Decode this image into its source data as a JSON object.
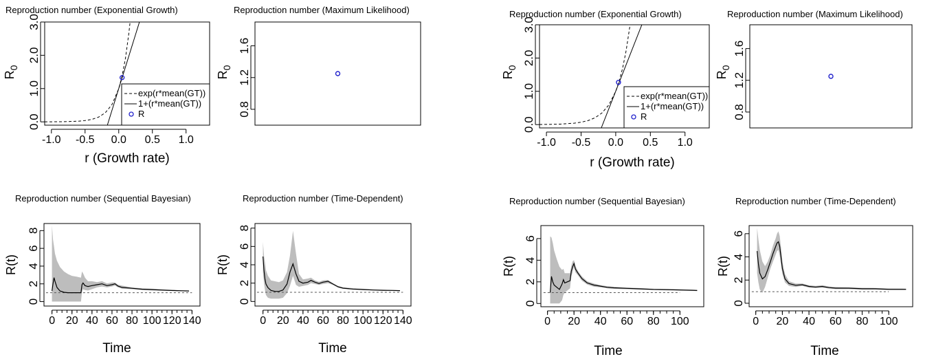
{
  "chart_data": [
    {
      "id": "eg1",
      "type": "line",
      "title": "Reproduction number (Exponential Growth)",
      "xlabel": "r (Growth rate)",
      "ylabel": "R0",
      "xlim": [
        -1.1,
        1.35
      ],
      "ylim": [
        -0.1,
        3.0
      ],
      "xticks": [
        -1.0,
        -0.5,
        0.0,
        0.5,
        1.0
      ],
      "xtick_labels": [
        "-1.0",
        "-0.5",
        "0.0",
        "0.5",
        "1.0"
      ],
      "yticks": [
        0.0,
        1.0,
        2.0,
        3.0
      ],
      "ytick_labels": [
        "0.0",
        "1.0",
        "2.0",
        "3.0"
      ],
      "mean_gt": 6.5,
      "series": [
        {
          "name": "exp(r*mean(GT))",
          "style": "dashed",
          "x": [
            -1.1,
            -1.0,
            -0.8,
            -0.6,
            -0.5,
            -0.4,
            -0.3,
            -0.2,
            -0.1,
            0.0,
            0.05,
            0.1,
            0.15,
            0.169
          ],
          "y": [
            0.001,
            0.002,
            0.006,
            0.02,
            0.039,
            0.074,
            0.142,
            0.273,
            0.522,
            1.0,
            1.384,
            1.916,
            2.651,
            3.0
          ]
        },
        {
          "name": "1+(r*mean(GT))",
          "style": "solid",
          "x": [
            -0.169,
            0.308
          ],
          "y": [
            -0.1,
            3.0
          ]
        },
        {
          "name": "R",
          "style": "point",
          "x": [
            0.05
          ],
          "y": [
            1.33
          ]
        }
      ],
      "legend": "bottom-right"
    },
    {
      "id": "ml1",
      "type": "scatter",
      "title": "Reproduction number (Maximum Likelihood)",
      "ylabel": "R0",
      "xlim": [
        0,
        1
      ],
      "ylim": [
        0.6,
        1.9
      ],
      "yticks": [
        0.8,
        1.2,
        1.6
      ],
      "ytick_labels": [
        "0.8",
        "1.2",
        "1.6"
      ],
      "points": [
        {
          "x": 0.5,
          "y": 1.25
        }
      ]
    },
    {
      "id": "sb1",
      "type": "area",
      "title": "Reproduction number (Sequential Bayesian)",
      "xlabel": "Time",
      "ylabel": "R(t)",
      "xlim": [
        -8,
        148
      ],
      "ylim": [
        -0.5,
        8.8
      ],
      "xticks": [
        0,
        20,
        40,
        60,
        80,
        100,
        120,
        140
      ],
      "xtick_labels": [
        "0",
        "20",
        "40",
        "60",
        "80",
        "100",
        "120",
        "140"
      ],
      "yticks": [
        0,
        2,
        4,
        6,
        8
      ],
      "ytick_labels": [
        "0",
        "2",
        "4",
        "6",
        "8"
      ],
      "reference_line": 1,
      "estimate": {
        "x": [
          0,
          1,
          2,
          3,
          5,
          8,
          12,
          16,
          20,
          25,
          29,
          30,
          31,
          33,
          36,
          40,
          45,
          50,
          55,
          60,
          63,
          66,
          70,
          80,
          90,
          100,
          110,
          120,
          130,
          137
        ],
        "y": [
          1.2,
          2.0,
          2.7,
          2.3,
          1.6,
          1.2,
          1.05,
          1.0,
          1.0,
          1.0,
          1.0,
          1.9,
          2.1,
          1.8,
          1.7,
          1.8,
          1.9,
          2.0,
          1.8,
          1.9,
          2.0,
          1.75,
          1.6,
          1.5,
          1.4,
          1.35,
          1.3,
          1.25,
          1.22,
          1.2
        ]
      },
      "ci_upper": {
        "x": [
          0,
          1,
          2,
          3,
          5,
          8,
          12,
          16,
          20,
          25,
          29,
          30,
          31,
          33,
          36,
          40,
          45,
          50,
          55,
          60,
          63,
          66,
          70,
          80,
          90,
          100,
          110,
          120,
          130,
          137
        ],
        "y": [
          8.6,
          7.0,
          6.2,
          5.4,
          4.6,
          3.9,
          3.4,
          3.1,
          2.9,
          2.8,
          2.7,
          3.4,
          3.2,
          2.7,
          2.3,
          2.3,
          2.2,
          2.3,
          2.05,
          2.15,
          2.15,
          1.9,
          1.8,
          1.6,
          1.5,
          1.45,
          1.4,
          1.32,
          1.28,
          1.25
        ]
      },
      "ci_lower": {
        "x": [
          0,
          1,
          2,
          3,
          5,
          8,
          12,
          16,
          20,
          25,
          29,
          30,
          31,
          33,
          36,
          40,
          45,
          50,
          55,
          60,
          63,
          66,
          70,
          80,
          90,
          100,
          110,
          120,
          130,
          137
        ],
        "y": [
          0.0,
          0.0,
          0.0,
          0.0,
          0.0,
          0.0,
          0.0,
          0.0,
          0.0,
          0.0,
          0.0,
          1.1,
          1.4,
          1.3,
          1.25,
          1.4,
          1.6,
          1.7,
          1.6,
          1.7,
          1.8,
          1.6,
          1.45,
          1.4,
          1.3,
          1.27,
          1.22,
          1.2,
          1.17,
          1.15
        ]
      }
    },
    {
      "id": "td1",
      "type": "area",
      "title": "Reproduction number (Time-Dependent)",
      "xlabel": "Time",
      "ylabel": "R(t)",
      "xlim": [
        -8,
        148
      ],
      "ylim": [
        -0.5,
        8.5
      ],
      "xticks": [
        0,
        20,
        40,
        60,
        80,
        100,
        120,
        140
      ],
      "xtick_labels": [
        "0",
        "20",
        "40",
        "60",
        "80",
        "100",
        "120",
        "140"
      ],
      "yticks": [
        0,
        2,
        4,
        6,
        8
      ],
      "ytick_labels": [
        "0",
        "2",
        "4",
        "6",
        "8"
      ],
      "reference_line": 1,
      "estimate": {
        "x": [
          0,
          1,
          2,
          3,
          5,
          8,
          12,
          16,
          20,
          24,
          27,
          30,
          33,
          36,
          40,
          45,
          48,
          52,
          56,
          60,
          65,
          70,
          75,
          80,
          90,
          100,
          110,
          120,
          130,
          137
        ],
        "y": [
          4.9,
          3.4,
          2.4,
          1.9,
          1.5,
          1.2,
          1.1,
          1.1,
          1.25,
          1.9,
          3.2,
          4.1,
          3.0,
          2.2,
          2.0,
          2.1,
          2.3,
          2.1,
          1.95,
          2.1,
          2.2,
          1.9,
          1.6,
          1.45,
          1.35,
          1.3,
          1.25,
          1.22,
          1.2,
          1.18
        ]
      },
      "ci_upper": {
        "x": [
          0,
          1,
          2,
          3,
          5,
          8,
          12,
          16,
          20,
          24,
          27,
          30,
          33,
          36,
          40,
          45,
          48,
          52,
          56,
          60,
          65,
          70,
          75,
          80,
          90,
          100,
          110,
          120,
          130,
          137
        ],
        "y": [
          6.5,
          5.0,
          4.2,
          3.4,
          2.8,
          2.3,
          2.2,
          2.1,
          2.3,
          3.2,
          5.0,
          7.7,
          5.2,
          3.0,
          2.4,
          2.5,
          2.6,
          2.3,
          2.15,
          2.3,
          2.35,
          2.0,
          1.7,
          1.55,
          1.45,
          1.38,
          1.32,
          1.28,
          1.25,
          1.22
        ]
      },
      "ci_lower": {
        "x": [
          0,
          1,
          2,
          3,
          5,
          8,
          12,
          16,
          20,
          24,
          27,
          30,
          33,
          36,
          40,
          45,
          48,
          52,
          56,
          60,
          65,
          70,
          75,
          80,
          90,
          100,
          110,
          120,
          130,
          137
        ],
        "y": [
          3.2,
          2.0,
          1.2,
          0.7,
          0.4,
          0.3,
          0.3,
          0.3,
          0.4,
          0.9,
          1.7,
          2.8,
          1.8,
          1.6,
          1.7,
          1.8,
          2.0,
          1.9,
          1.8,
          1.9,
          2.0,
          1.8,
          1.5,
          1.38,
          1.28,
          1.24,
          1.2,
          1.17,
          1.15,
          1.13
        ]
      }
    },
    {
      "id": "eg2",
      "type": "line",
      "title": "Reproduction number (Exponential Growth)",
      "xlabel": "r (Growth rate)",
      "ylabel": "R0",
      "xlim": [
        -1.1,
        1.35
      ],
      "ylim": [
        -0.1,
        3.0
      ],
      "xticks": [
        -1.0,
        -0.5,
        0.0,
        0.5,
        1.0
      ],
      "xtick_labels": [
        "-1.0",
        "-0.5",
        "0.0",
        "0.5",
        "1.0"
      ],
      "yticks": [
        0.0,
        1.0,
        2.0,
        3.0
      ],
      "ytick_labels": [
        "0.0",
        "1.0",
        "2.0",
        "3.0"
      ],
      "mean_gt": 5.3,
      "series": [
        {
          "name": "exp(r*mean(GT))",
          "style": "dashed",
          "x": [
            -1.1,
            -1.0,
            -0.8,
            -0.6,
            -0.5,
            -0.4,
            -0.3,
            -0.2,
            -0.1,
            0.0,
            0.05,
            0.1,
            0.15,
            0.207
          ],
          "y": [
            0.003,
            0.005,
            0.014,
            0.042,
            0.071,
            0.12,
            0.204,
            0.346,
            0.589,
            1.0,
            1.304,
            1.7,
            2.216,
            3.0
          ]
        },
        {
          "name": "1+(r*mean(GT))",
          "style": "solid",
          "x": [
            -0.208,
            0.377
          ],
          "y": [
            -0.1,
            3.0
          ]
        },
        {
          "name": "R",
          "style": "point",
          "x": [
            0.04
          ],
          "y": [
            1.27
          ]
        }
      ],
      "legend": "bottom-right"
    },
    {
      "id": "ml2",
      "type": "scatter",
      "title": "Reproduction number (Maximum Likelihood)",
      "ylabel": "R0",
      "xlim": [
        0,
        1
      ],
      "ylim": [
        0.6,
        1.9
      ],
      "yticks": [
        0.8,
        1.2,
        1.6
      ],
      "ytick_labels": [
        "0.8",
        "1.2",
        "1.6"
      ],
      "points": [
        {
          "x": 0.5,
          "y": 1.25
        }
      ]
    },
    {
      "id": "sb2",
      "type": "area",
      "title": "Reproduction number (Sequential Bayesian)",
      "xlabel": "Time",
      "ylabel": "R(t)",
      "xlim": [
        -5,
        118
      ],
      "ylim": [
        -0.3,
        7.2
      ],
      "xticks": [
        0,
        20,
        40,
        60,
        80,
        100
      ],
      "xtick_labels": [
        "0",
        "20",
        "40",
        "60",
        "80",
        "100"
      ],
      "yticks": [
        0,
        2,
        4,
        6
      ],
      "ytick_labels": [
        "0",
        "2",
        "4",
        "6"
      ],
      "reference_line": 1,
      "estimate": {
        "x": [
          2,
          3,
          4,
          5,
          7,
          9,
          11,
          12,
          13,
          15,
          17,
          18,
          19,
          20,
          21,
          23,
          26,
          30,
          35,
          40,
          45,
          50,
          60,
          70,
          80,
          90,
          100,
          110,
          113
        ],
        "y": [
          1.0,
          2.5,
          2.0,
          1.7,
          1.5,
          1.3,
          1.8,
          2.2,
          1.9,
          2.0,
          2.1,
          3.0,
          3.4,
          3.7,
          3.2,
          2.8,
          2.3,
          1.9,
          1.7,
          1.6,
          1.5,
          1.45,
          1.4,
          1.35,
          1.3,
          1.28,
          1.25,
          1.22,
          1.2
        ]
      },
      "ci_upper": {
        "x": [
          2,
          3,
          4,
          5,
          7,
          9,
          11,
          12,
          13,
          15,
          17,
          18,
          19,
          20,
          21,
          23,
          26,
          30,
          35,
          40,
          45,
          50,
          60,
          70,
          80,
          90,
          100,
          110,
          113
        ],
        "y": [
          6.2,
          6.1,
          5.6,
          4.9,
          4.1,
          3.4,
          3.1,
          3.2,
          2.8,
          2.8,
          2.8,
          3.5,
          3.9,
          4.0,
          3.5,
          3.0,
          2.5,
          2.05,
          1.85,
          1.7,
          1.6,
          1.55,
          1.48,
          1.42,
          1.36,
          1.33,
          1.3,
          1.27,
          1.25
        ]
      },
      "ci_lower": {
        "x": [
          2,
          3,
          4,
          5,
          7,
          9,
          11,
          12,
          13,
          15,
          17,
          18,
          19,
          20,
          21,
          23,
          26,
          30,
          35,
          40,
          45,
          50,
          60,
          70,
          80,
          90,
          100,
          110,
          113
        ],
        "y": [
          0.0,
          0.0,
          0.0,
          0.0,
          0.0,
          0.0,
          0.3,
          0.8,
          1.0,
          1.2,
          1.4,
          2.5,
          2.9,
          3.4,
          2.9,
          2.6,
          2.1,
          1.75,
          1.55,
          1.5,
          1.4,
          1.35,
          1.32,
          1.28,
          1.24,
          1.22,
          1.2,
          1.17,
          1.15
        ]
      }
    },
    {
      "id": "td2",
      "type": "area",
      "title": "Reproduction number (Time-Dependent)",
      "xlabel": "Time",
      "ylabel": "R(t)",
      "xlim": [
        -5,
        118
      ],
      "ylim": [
        -0.3,
        6.7
      ],
      "xticks": [
        0,
        20,
        40,
        60,
        80,
        100
      ],
      "xtick_labels": [
        "0",
        "20",
        "40",
        "60",
        "80",
        "100"
      ],
      "yticks": [
        0,
        2,
        4,
        6
      ],
      "ytick_labels": [
        "0",
        "2",
        "4",
        "6"
      ],
      "reference_line": 1,
      "estimate": {
        "x": [
          1,
          2,
          3,
          5,
          7,
          9,
          11,
          13,
          15,
          16,
          17,
          18,
          19,
          20,
          22,
          25,
          30,
          35,
          40,
          45,
          50,
          55,
          60,
          70,
          80,
          90,
          100,
          110,
          113
        ],
        "y": [
          4.5,
          3.4,
          2.6,
          2.1,
          2.3,
          2.9,
          3.6,
          4.3,
          4.9,
          5.2,
          5.3,
          4.9,
          4.0,
          3.0,
          2.1,
          1.7,
          1.55,
          1.6,
          1.45,
          1.4,
          1.45,
          1.35,
          1.3,
          1.3,
          1.25,
          1.25,
          1.2,
          1.2,
          1.2
        ]
      },
      "ci_upper": {
        "x": [
          1,
          2,
          3,
          5,
          7,
          9,
          11,
          13,
          15,
          16,
          17,
          18,
          19,
          20,
          22,
          25,
          30,
          35,
          40,
          45,
          50,
          55,
          60,
          70,
          80,
          90,
          100,
          110,
          113
        ],
        "y": [
          6.5,
          5.5,
          4.6,
          3.6,
          3.2,
          3.6,
          4.2,
          5.0,
          5.6,
          6.0,
          6.2,
          5.8,
          4.8,
          3.6,
          2.5,
          1.9,
          1.7,
          1.7,
          1.55,
          1.5,
          1.55,
          1.45,
          1.4,
          1.38,
          1.33,
          1.32,
          1.28,
          1.27,
          1.26
        ]
      },
      "ci_lower": {
        "x": [
          1,
          2,
          3,
          5,
          7,
          9,
          11,
          13,
          15,
          16,
          17,
          18,
          19,
          20,
          22,
          25,
          30,
          35,
          40,
          45,
          50,
          55,
          60,
          70,
          80,
          90,
          100,
          110,
          113
        ],
        "y": [
          2.6,
          1.8,
          1.2,
          0.9,
          1.4,
          2.2,
          3.0,
          3.6,
          4.2,
          4.5,
          4.6,
          4.1,
          3.3,
          2.5,
          1.8,
          1.5,
          1.4,
          1.5,
          1.35,
          1.3,
          1.35,
          1.27,
          1.22,
          1.22,
          1.18,
          1.18,
          1.14,
          1.14,
          1.14
        ]
      }
    }
  ]
}
